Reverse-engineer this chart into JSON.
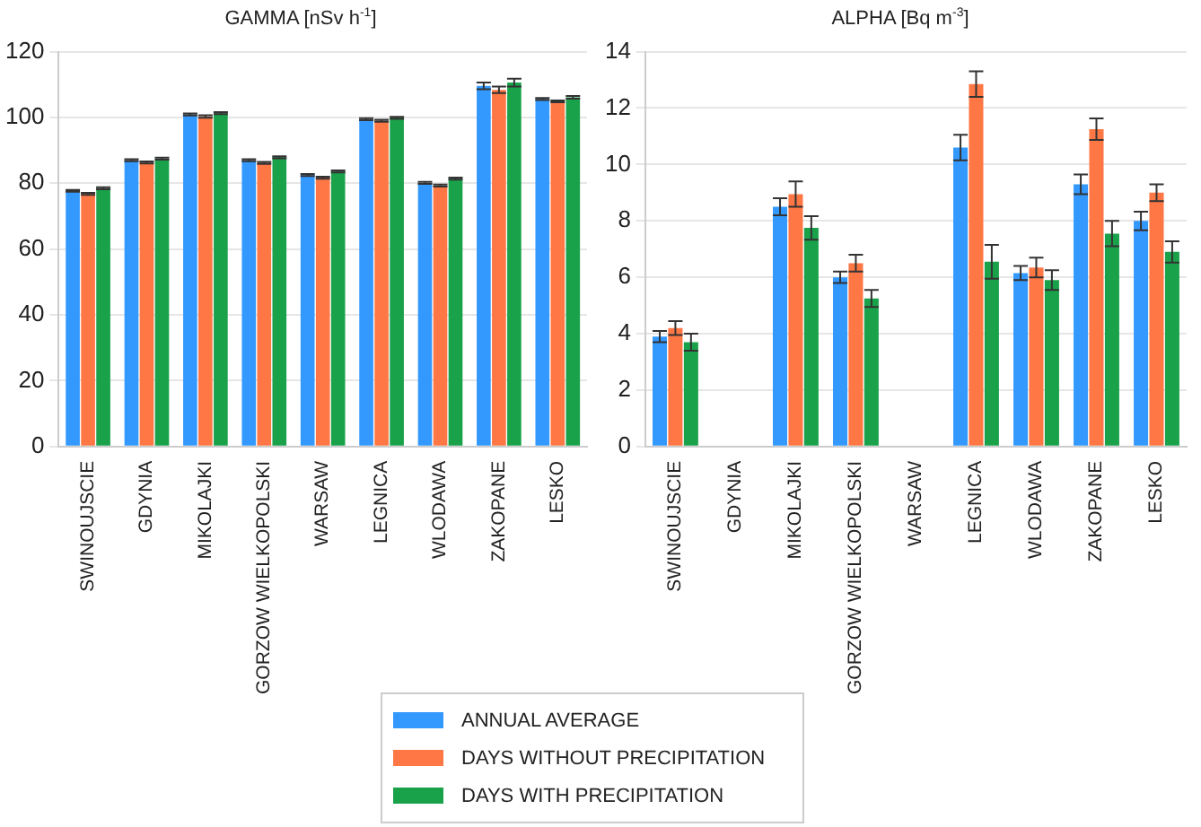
{
  "chart_data": [
    {
      "type": "bar",
      "title": "GAMMA [nSv h$^{-1}$]",
      "categories": [
        "SWINOUJSCIE",
        "GDYNIA",
        "MIKOLAJKI",
        "GORZOW WIELKOPOLSKI",
        "WARSAW",
        "LEGNICA",
        "WLODAWA",
        "ZAKOPANE",
        "LESKO"
      ],
      "ylim": [
        0,
        120
      ],
      "yticks": [
        0,
        20,
        40,
        60,
        80,
        100,
        120
      ],
      "grid": "y",
      "legend": "bottom",
      "series": [
        {
          "name": "ANNUAL AVERAGE",
          "color": "#3399ff",
          "values": [
            77.7,
            87.0,
            100.9,
            87.0,
            82.5,
            99.5,
            80.1,
            109.6,
            105.6
          ],
          "errors": [
            0.3,
            0.3,
            0.3,
            0.3,
            0.3,
            0.3,
            0.3,
            1.0,
            0.3
          ]
        },
        {
          "name": "DAYS WITHOUT PRECIPITATION",
          "color": "#ff7744",
          "values": [
            76.8,
            86.3,
            100.3,
            86.2,
            81.7,
            99.0,
            79.3,
            108.4,
            104.9
          ],
          "errors": [
            0.3,
            0.3,
            0.4,
            0.3,
            0.3,
            0.3,
            0.3,
            1.0,
            0.3
          ]
        },
        {
          "name": "DAYS WITH PRECIPITATION",
          "color": "#1aa24a",
          "values": [
            78.5,
            87.5,
            101.3,
            87.9,
            83.6,
            99.9,
            81.4,
            110.6,
            106.1
          ],
          "errors": [
            0.3,
            0.3,
            0.3,
            0.3,
            0.3,
            0.3,
            0.3,
            1.2,
            0.4
          ]
        }
      ]
    },
    {
      "type": "bar",
      "title": "ALPHA [Bq m$^{-3}$]",
      "categories": [
        "SWINOUJSCIE",
        "GDYNIA",
        "MIKOLAJKI",
        "GORZOW WIELKOPOLSKI",
        "WARSAW",
        "LEGNICA",
        "WLODAWA",
        "ZAKOPANE",
        "LESKO"
      ],
      "ylim": [
        0,
        14
      ],
      "yticks": [
        0,
        2,
        4,
        6,
        8,
        10,
        12,
        14
      ],
      "grid": "y",
      "series": [
        {
          "color": "#3399ff",
          "values": [
            3.9,
            null,
            8.5,
            6.0,
            null,
            10.6,
            6.15,
            9.3,
            8.0
          ],
          "errors": [
            0.2,
            null,
            0.3,
            0.2,
            null,
            0.45,
            0.25,
            0.35,
            0.33
          ]
        },
        {
          "color": "#ff7744",
          "values": [
            4.2,
            null,
            8.95,
            6.5,
            null,
            12.85,
            6.35,
            11.25,
            9.0
          ],
          "errors": [
            0.25,
            null,
            0.45,
            0.3,
            null,
            0.45,
            0.35,
            0.38,
            0.3
          ]
        },
        {
          "color": "#1aa24a",
          "values": [
            3.7,
            null,
            7.75,
            5.25,
            null,
            6.55,
            5.9,
            7.55,
            6.9
          ],
          "errors": [
            0.3,
            null,
            0.42,
            0.3,
            null,
            0.6,
            0.35,
            0.45,
            0.38
          ]
        }
      ]
    }
  ]
}
